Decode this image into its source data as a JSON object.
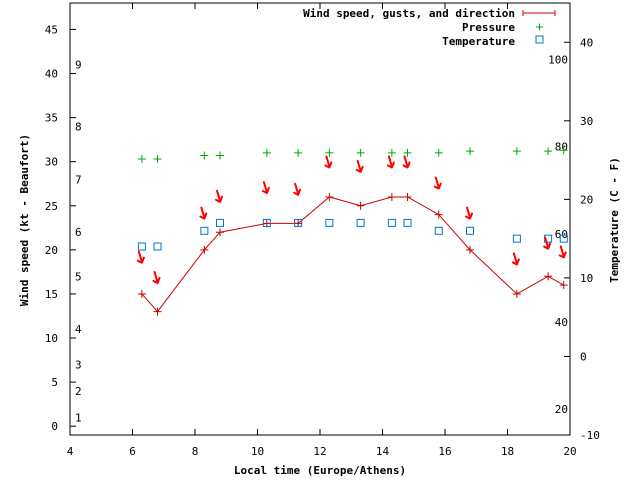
{
  "chart_data": {
    "type": "line",
    "title": "",
    "xlabel": "Local time (Europe/Athens)",
    "ylabel": "Wind speed (kt - Beaufort)",
    "y2label": "Temperature (C - F)",
    "xlim": [
      4,
      20
    ],
    "ylim": [
      -1,
      48
    ],
    "y2lim": [
      -10,
      45
    ],
    "x_ticks": [
      "4",
      "6",
      "8",
      "10",
      "12",
      "14",
      "16",
      "18",
      "20"
    ],
    "y_ticks": [
      "0",
      "5",
      "10",
      "15",
      "20",
      "25",
      "30",
      "35",
      "40",
      "45"
    ],
    "y2_ticks": [
      "-10",
      "0",
      "10",
      "20",
      "30",
      "40"
    ],
    "beaufort_labels": [
      {
        "label": "1",
        "kt": 1
      },
      {
        "label": "2",
        "kt": 4
      },
      {
        "label": "3",
        "kt": 7
      },
      {
        "label": "4",
        "kt": 11
      },
      {
        "label": "5",
        "kt": 17
      },
      {
        "label": "6",
        "kt": 22
      },
      {
        "label": "7",
        "kt": 28
      },
      {
        "label": "8",
        "kt": 34
      },
      {
        "label": "9",
        "kt": 41
      }
    ],
    "fahrenheit_labels": [
      {
        "label": "20",
        "c": -6.7
      },
      {
        "label": "40",
        "c": 4.4
      },
      {
        "label": "60",
        "c": 15.6
      },
      {
        "label": "80",
        "c": 26.7
      },
      {
        "label": "100",
        "c": 37.8
      }
    ],
    "legend": {
      "placement": "top-right",
      "entries": [
        "Wind speed, gusts, and direction",
        "Pressure",
        "Temperature"
      ]
    },
    "colors": {
      "wind": "#cc0000",
      "pressure": "#00aa00",
      "temperature": "#0077cc",
      "arrow": "#ff0000"
    },
    "series": [
      {
        "name": "Wind speed, gusts, and direction",
        "x": [
          6.3,
          6.8,
          8.3,
          8.8,
          10.3,
          11.3,
          12.3,
          13.3,
          14.3,
          14.8,
          15.8,
          16.8,
          18.3,
          19.3,
          19.8
        ],
        "y": [
          15,
          13,
          20,
          22,
          23,
          23,
          26,
          25,
          26,
          26,
          24,
          20,
          15,
          17,
          16
        ]
      },
      {
        "name": "Pressure",
        "x": [
          6.3,
          6.8,
          8.3,
          8.8,
          10.3,
          11.3,
          12.3,
          13.3,
          14.3,
          14.8,
          15.8,
          16.8,
          18.3,
          19.3,
          19.8
        ],
        "y": [
          30.3,
          30.3,
          30.7,
          30.7,
          31.0,
          31.0,
          31.0,
          31.0,
          31.0,
          31.0,
          31.0,
          31.2,
          31.2,
          31.2,
          31.3
        ]
      },
      {
        "name": "Temperature",
        "x": [
          6.3,
          6.8,
          8.3,
          8.8,
          10.3,
          11.3,
          12.3,
          13.3,
          14.3,
          14.8,
          15.8,
          16.8,
          18.3,
          19.3,
          19.8
        ],
        "y": [
          14,
          14,
          16,
          17,
          17,
          17,
          17,
          17,
          17,
          17,
          16,
          16,
          15,
          15,
          15
        ]
      }
    ],
    "direction_arrows": {
      "x": [
        6.3,
        6.8,
        8.3,
        8.8,
        10.3,
        11.3,
        12.3,
        13.3,
        14.3,
        14.8,
        15.8,
        16.8,
        18.3,
        19.3,
        19.8
      ],
      "y": [
        19,
        16.7,
        24,
        25.9,
        26.9,
        26.7,
        29.8,
        29.3,
        29.8,
        29.8,
        27.4,
        24,
        18.8,
        20.6,
        19.6
      ]
    }
  }
}
